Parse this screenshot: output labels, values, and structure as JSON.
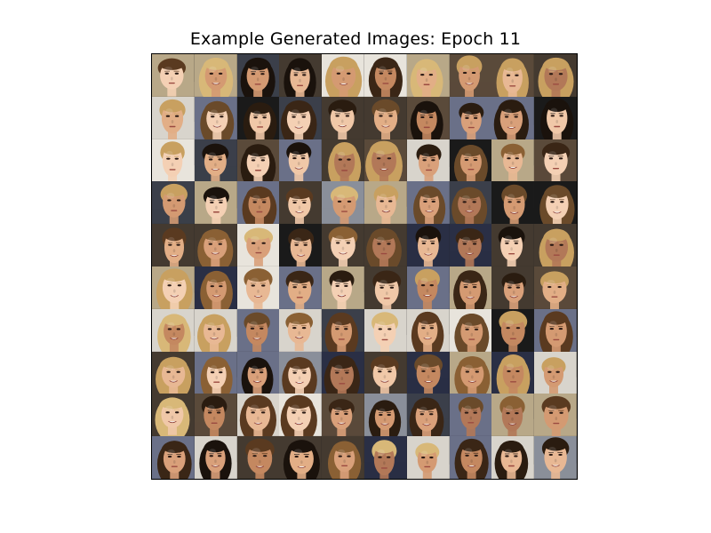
{
  "title": "Example Generated Images: Epoch 11",
  "grid": {
    "rows": 10,
    "cols": 10
  },
  "palette": {
    "backgrounds": [
      "#1a1a1a",
      "#3b3f4a",
      "#8a8f9a",
      "#d8d4cc",
      "#5a4a3a",
      "#2a2f45",
      "#b8a888",
      "#e8e4dc",
      "#443a30",
      "#6a7088"
    ],
    "skins": [
      "#e8b894",
      "#d9a07a",
      "#c48860",
      "#f0c8a8",
      "#b27858",
      "#e2ae86",
      "#d49a72",
      "#f4d0b4"
    ],
    "hairs": [
      "#1a120c",
      "#3a2616",
      "#5a3a20",
      "#8a6034",
      "#c8a060",
      "#2a1c10",
      "#6a4a2a",
      "#d8b878"
    ]
  }
}
